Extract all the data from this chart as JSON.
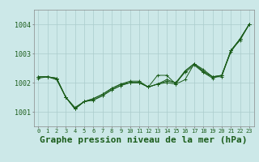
{
  "title": "Graphe pression niveau de la mer (hPa)",
  "xlabel_ticks": [
    "0",
    "1",
    "2",
    "3",
    "4",
    "5",
    "6",
    "7",
    "8",
    "9",
    "10",
    "11",
    "12",
    "13",
    "14",
    "15",
    "16",
    "17",
    "18",
    "19",
    "20",
    "21",
    "22",
    "23"
  ],
  "ylim": [
    1000.5,
    1004.5
  ],
  "yticks": [
    1001,
    1002,
    1003,
    1004
  ],
  "background_color": "#cce8e8",
  "grid_color": "#aacccc",
  "line_color": "#1a5c1a",
  "series": [
    [
      1002.2,
      1002.2,
      1002.15,
      1001.5,
      1001.1,
      1001.35,
      1001.45,
      1001.6,
      1001.8,
      1001.95,
      1002.0,
      1002.0,
      1001.85,
      1001.95,
      1002.05,
      1002.0,
      1002.35,
      1002.6,
      1002.35,
      1002.15,
      1002.25,
      1003.1,
      1003.45,
      1004.0
    ],
    [
      1002.2,
      1002.2,
      1002.1,
      1001.5,
      1001.1,
      1001.35,
      1001.4,
      1001.55,
      1001.75,
      1001.9,
      1002.0,
      1002.0,
      1001.85,
      1001.95,
      1002.1,
      1002.0,
      1002.4,
      1002.65,
      1002.45,
      1002.2,
      1002.25,
      1003.1,
      1003.5,
      1004.0
    ],
    [
      1002.15,
      1002.2,
      1002.15,
      1001.5,
      1001.1,
      1001.35,
      1001.45,
      1001.6,
      1001.8,
      1001.95,
      1002.05,
      1002.05,
      1001.85,
      1002.25,
      1002.25,
      1001.95,
      1002.1,
      1002.65,
      1002.4,
      1002.2,
      1002.25,
      1003.05,
      1003.5,
      1004.0
    ],
    [
      1002.2,
      1002.2,
      1002.15,
      1001.5,
      1001.15,
      1001.35,
      1001.4,
      1001.55,
      1001.75,
      1001.9,
      1002.0,
      1002.0,
      1001.85,
      1001.95,
      1002.0,
      1001.95,
      1002.4,
      1002.65,
      1002.35,
      1002.2,
      1002.2,
      1003.1,
      1003.5,
      1004.0
    ]
  ],
  "title_color": "#1a5c1a",
  "title_fontsize": 8,
  "ytick_fontsize": 6,
  "xtick_fontsize": 5
}
